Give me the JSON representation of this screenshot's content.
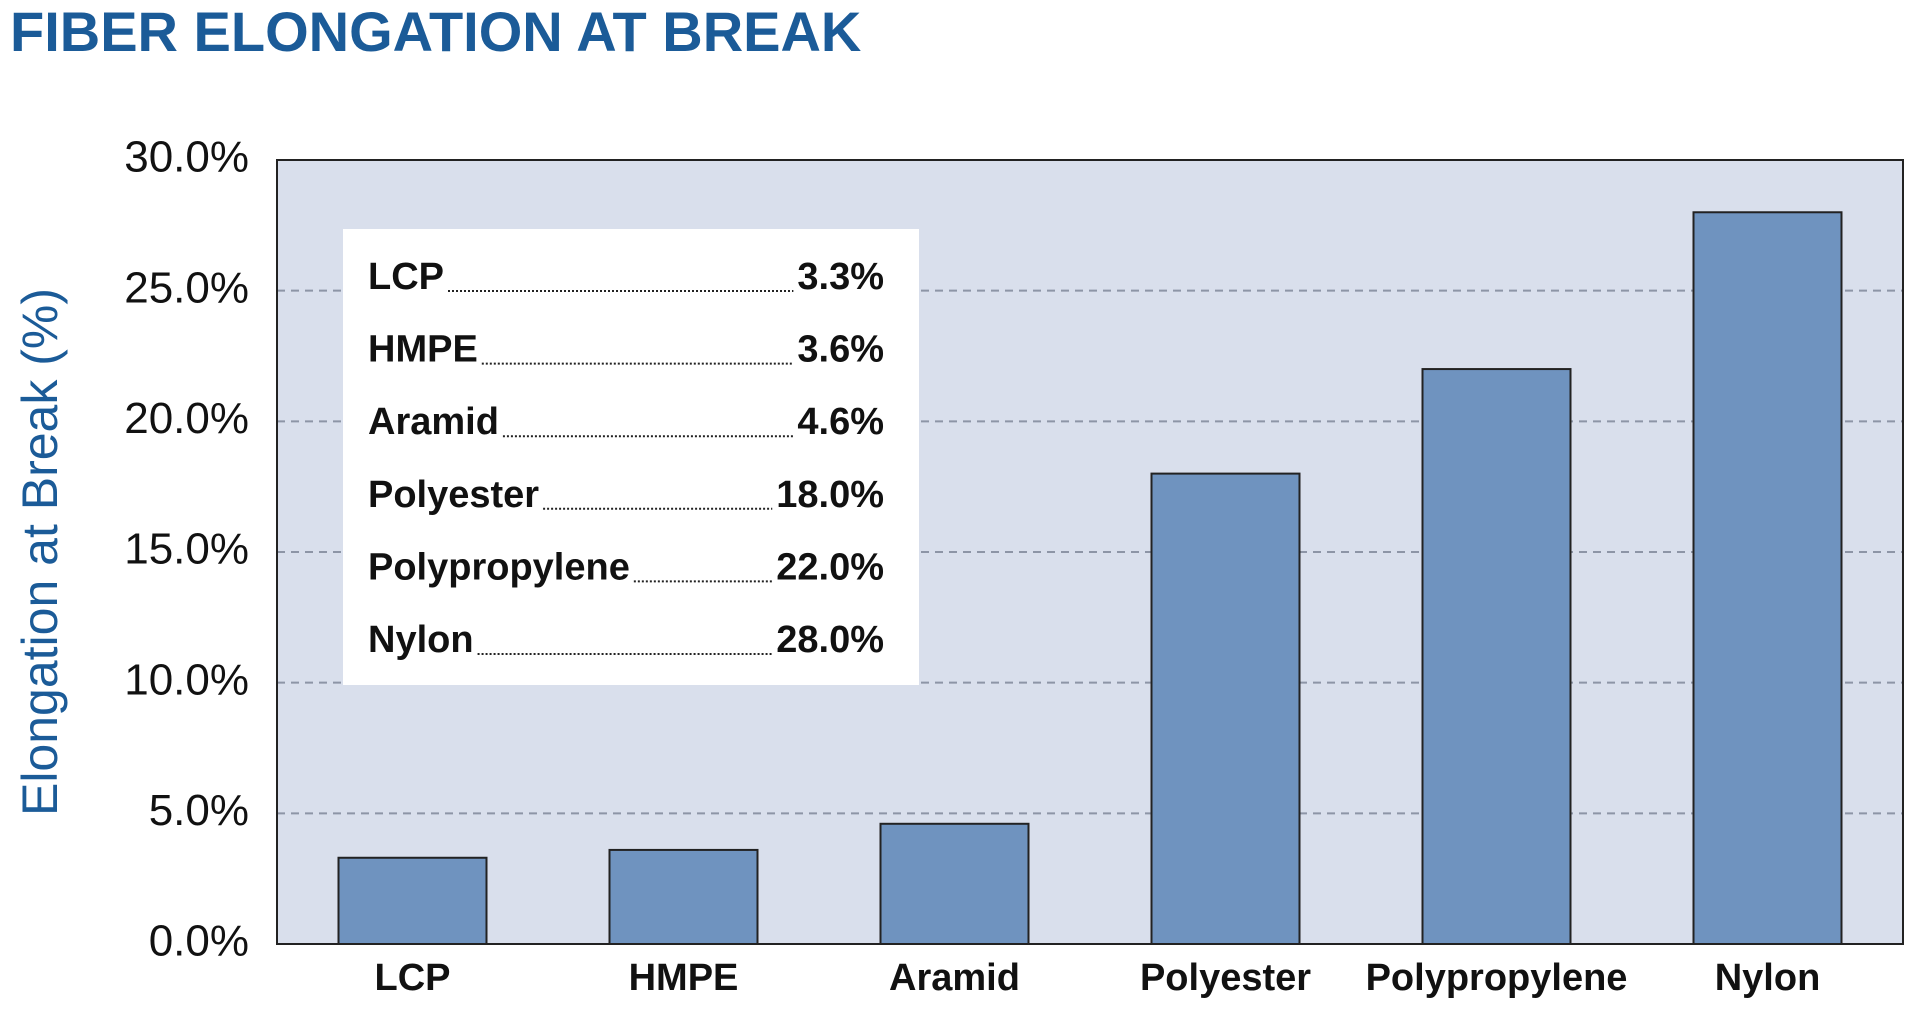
{
  "chart_data": {
    "type": "bar",
    "title": "FIBER ELONGATION AT BREAK",
    "y_label": "Elongation at Break (%)",
    "categories": [
      "LCP",
      "HMPE",
      "Aramid",
      "Polyester",
      "Polypropylene",
      "Nylon"
    ],
    "values": [
      3.3,
      3.6,
      4.6,
      18.0,
      22.0,
      28.0
    ],
    "value_labels": [
      "3.3%",
      "3.6%",
      "4.6%",
      "18.0%",
      "22.0%",
      "28.0%"
    ],
    "color": "#6f93bf",
    "ylim": [
      0,
      30
    ],
    "yticks": [
      {
        "value": 0,
        "label": "0.0%"
      },
      {
        "value": 5,
        "label": "5.0%"
      },
      {
        "value": 10,
        "label": "10.0%"
      },
      {
        "value": 15,
        "label": "15.0%"
      },
      {
        "value": 20,
        "label": "20.0%"
      },
      {
        "value": 25,
        "label": "25.0%"
      },
      {
        "value": 30,
        "label": "30.0%"
      }
    ],
    "grid": true
  }
}
